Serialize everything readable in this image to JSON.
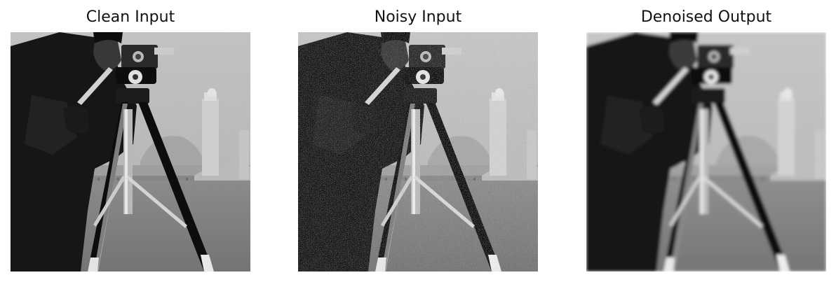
{
  "figure": {
    "panels": [
      {
        "title": "Clean Input",
        "variant": "clean"
      },
      {
        "title": "Noisy Input",
        "variant": "noisy"
      },
      {
        "title": "Denoised Output",
        "variant": "denoised"
      }
    ]
  }
}
